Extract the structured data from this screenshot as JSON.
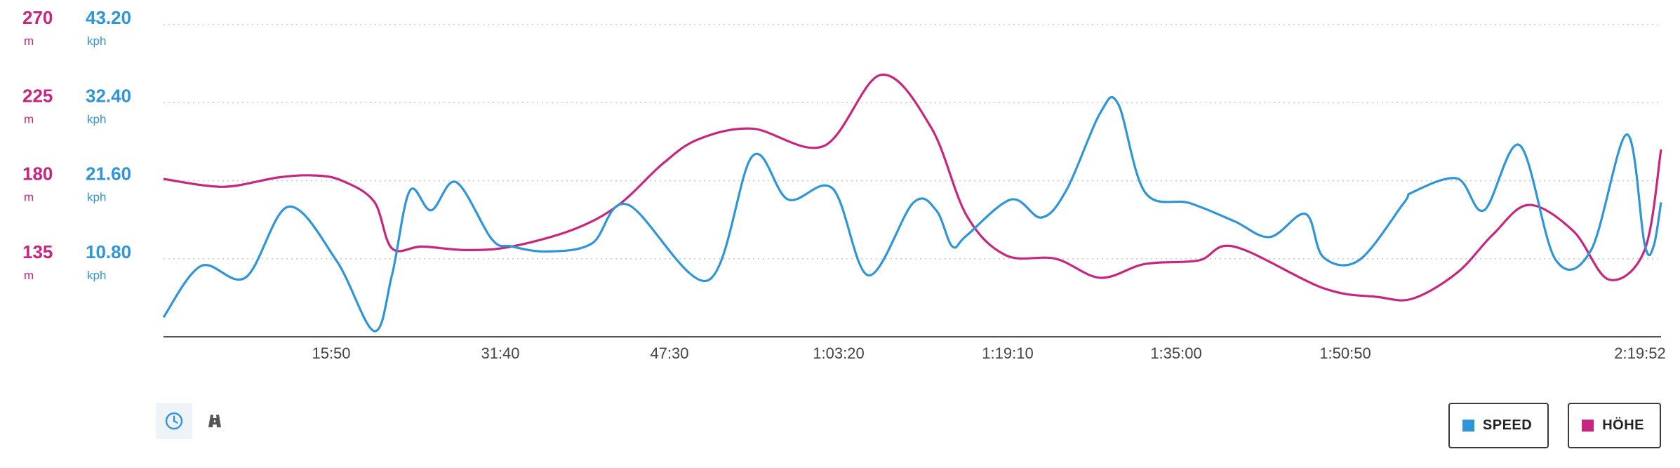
{
  "chart_data": {
    "type": "line",
    "x_unit": "elapsed time",
    "x_ticks": [
      "15:50",
      "31:40",
      "47:30",
      "1:03:20",
      "1:19:10",
      "1:35:00",
      "1:50:50",
      "2:19:52"
    ],
    "x_range_seconds": [
      0,
      8392
    ],
    "y_left_axes": [
      {
        "series": "elevation",
        "unit": "m",
        "ticks": [
          "270",
          "225",
          "180",
          "135"
        ],
        "range": [
          90,
          270
        ],
        "color": "#c8267e"
      },
      {
        "series": "speed",
        "unit": "kph",
        "ticks": [
          "43.20",
          "32.40",
          "21.60",
          "10.80"
        ],
        "range": [
          0,
          43.2
        ],
        "color": "#2e96d8"
      }
    ],
    "grid": "horizontal dotted",
    "series": [
      {
        "name": "SPEED",
        "color": "#2e96d8",
        "x": [
          0,
          210,
          460,
          700,
          970,
          1180,
          1280,
          1380,
          1500,
          1640,
          1840,
          1950,
          2150,
          2400,
          2600,
          3050,
          3300,
          3500,
          3750,
          3950,
          4200,
          4330,
          4420,
          4500,
          4750,
          4920,
          5060,
          5250,
          5350,
          5500,
          5750,
          6000,
          6200,
          6400,
          6500,
          6700,
          6950,
          7000,
          7250,
          7400,
          7600,
          7800,
          8000,
          8200,
          8300,
          8350,
          8392
        ],
        "values": [
          2.7,
          9.8,
          8.2,
          18.0,
          10.5,
          0.8,
          8.5,
          20.2,
          17.5,
          21.4,
          13.5,
          12.5,
          11.8,
          12.9,
          18.3,
          7.8,
          25.0,
          19.0,
          20.5,
          8.5,
          18.5,
          17.5,
          12.5,
          14.0,
          19.0,
          16.5,
          20.3,
          31.0,
          32.2,
          20.0,
          18.5,
          16.0,
          13.8,
          17.0,
          11.0,
          10.6,
          18.5,
          20.0,
          21.9,
          17.5,
          26.5,
          10.7,
          12.0,
          28.0,
          12.8,
          12.5,
          18.6
        ]
      },
      {
        "name": "HÖHE",
        "color": "#c8267e",
        "x": [
          0,
          250,
          400,
          650,
          850,
          1000,
          1180,
          1280,
          1450,
          1700,
          1950,
          2300,
          2550,
          2800,
          3000,
          3300,
          3700,
          4020,
          4300,
          4500,
          4720,
          5000,
          5250,
          5500,
          5800,
          6000,
          6500,
          6800,
          7000,
          7250,
          7450,
          7650,
          7900,
          8100,
          8300,
          8392
        ],
        "values": [
          181,
          177,
          177,
          182,
          183,
          180,
          168,
          141,
          142,
          140,
          142,
          152,
          166,
          190,
          204,
          210,
          200,
          241,
          211,
          160,
          137,
          135,
          124,
          132,
          134,
          142,
          118,
          113,
          112,
          127,
          149,
          166,
          151,
          123,
          140,
          198
        ]
      }
    ]
  },
  "toolbar": {
    "buttons": [
      {
        "icon": "clock-icon",
        "active": true
      },
      {
        "icon": "road-icon",
        "active": false
      }
    ]
  },
  "legend": {
    "items": [
      {
        "label": "SPEED",
        "color": "#2e96d8"
      },
      {
        "label": "HÖHE",
        "color": "#c8267e"
      }
    ]
  }
}
